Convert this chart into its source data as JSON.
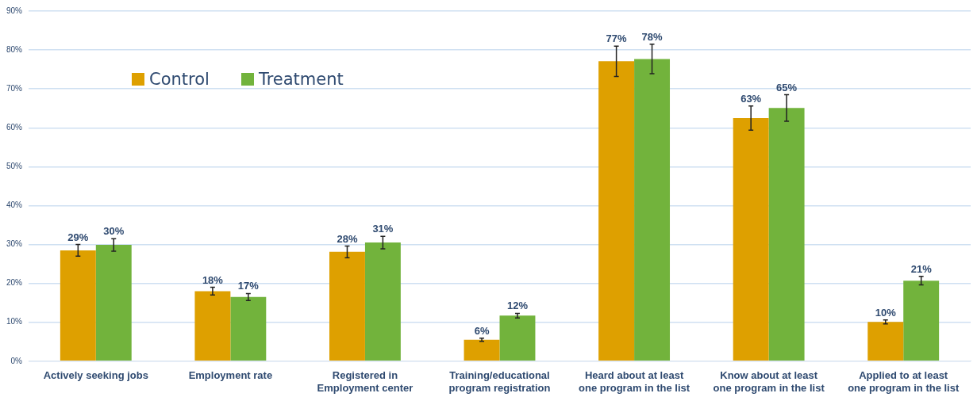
{
  "chart_data": {
    "type": "bar",
    "categories": [
      "Actively seeking jobs",
      "Employment rate",
      "Registered in Employment center",
      "Training/educational program registration",
      "Heard about at least one program in the list",
      "Know about at least one program in the list",
      "Applied to at least one program in the list"
    ],
    "series": [
      {
        "name": "Control",
        "color": "#dea000",
        "values": [
          28.5,
          18.0,
          28.1,
          5.5,
          77.1,
          62.5,
          10.1
        ],
        "errors": [
          1.5,
          1.0,
          1.5,
          0.4,
          3.9,
          3.1,
          0.5
        ],
        "value_labels": [
          "29%",
          "18%",
          "28%",
          "6%",
          "77%",
          "63%",
          "10%"
        ]
      },
      {
        "name": "Treatment",
        "color": "#72b33c",
        "values": [
          29.9,
          16.5,
          30.5,
          11.7,
          77.7,
          65.1,
          20.7
        ],
        "errors": [
          1.6,
          0.9,
          1.6,
          0.6,
          3.8,
          3.4,
          1.1
        ],
        "value_labels": [
          "30%",
          "17%",
          "31%",
          "12%",
          "78%",
          "65%",
          "21%"
        ]
      }
    ],
    "ylim": [
      0,
      90
    ],
    "yticks": [
      {
        "value": 0,
        "label": "0%"
      },
      {
        "value": 10,
        "label": "10%"
      },
      {
        "value": 20,
        "label": "20%"
      },
      {
        "value": 30,
        "label": "30%"
      },
      {
        "value": 40,
        "label": "40%"
      },
      {
        "value": 50,
        "label": "50%"
      },
      {
        "value": 60,
        "label": "60%"
      },
      {
        "value": 70,
        "label": "70%"
      },
      {
        "value": 80,
        "label": "80%"
      },
      {
        "value": 90,
        "label": "90%"
      }
    ],
    "grid": "y",
    "legend": "top left"
  }
}
